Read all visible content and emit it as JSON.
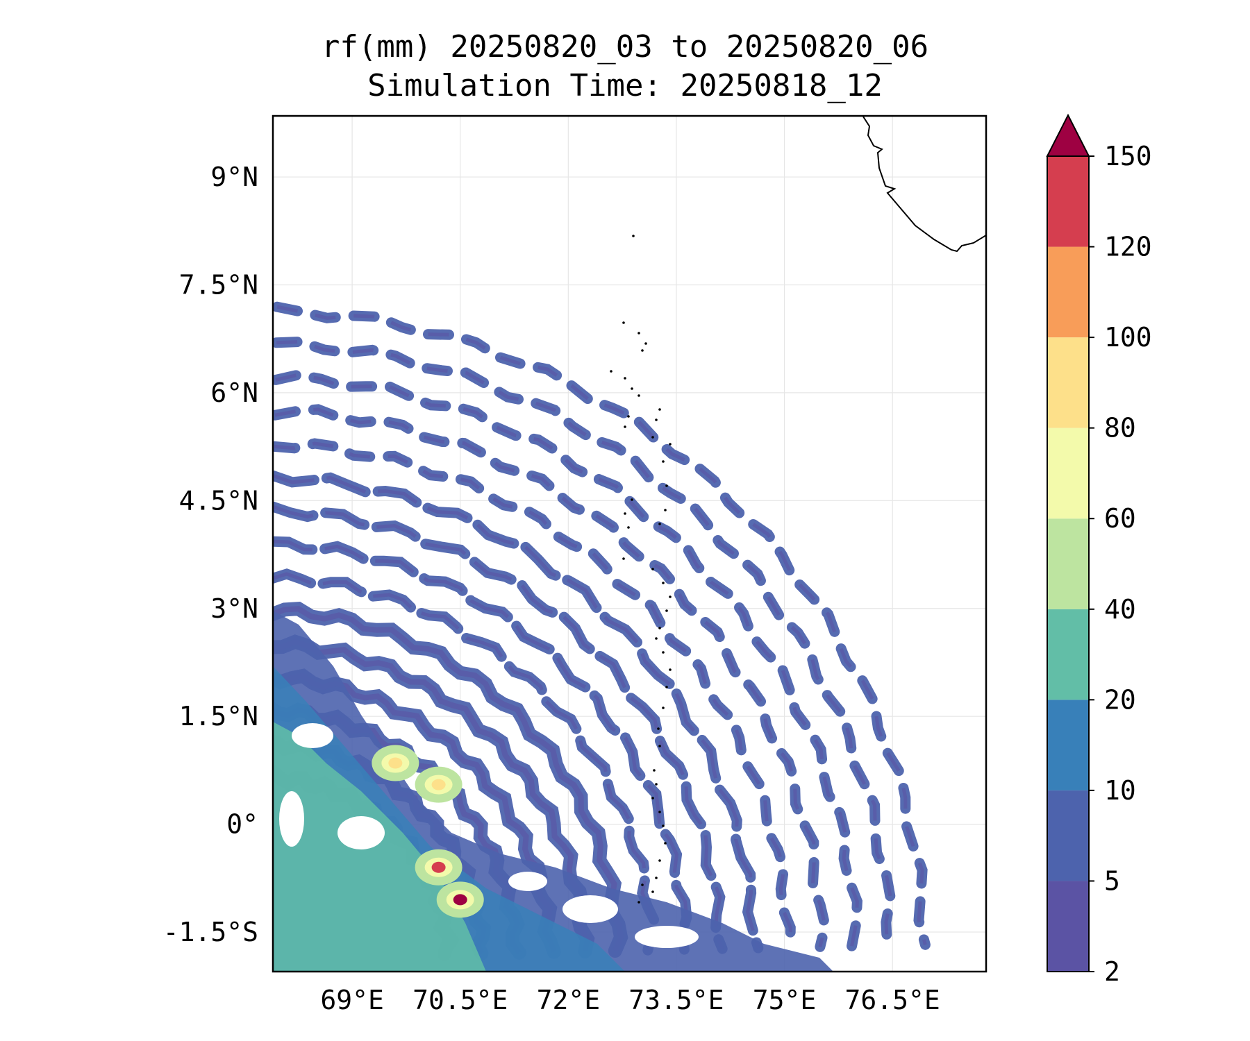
{
  "title": "rf(mm) 20250820_03 to 20250820_06",
  "subtitle": "Simulation Time: 20250818_12",
  "axes": {
    "lon_min": 67.9,
    "lon_max": 77.8,
    "lat_min": -2.05,
    "lat_max": 9.85,
    "x_ticks": [
      {
        "value": 69.0,
        "label": "69°E"
      },
      {
        "value": 70.5,
        "label": "70.5°E"
      },
      {
        "value": 72.0,
        "label": "72°E"
      },
      {
        "value": 73.5,
        "label": "73.5°E"
      },
      {
        "value": 75.0,
        "label": "75°E"
      },
      {
        "value": 76.5,
        "label": "76.5°E"
      }
    ],
    "y_ticks": [
      {
        "value": 9.0,
        "label": "9°N"
      },
      {
        "value": 7.5,
        "label": "7.5°N"
      },
      {
        "value": 6.0,
        "label": "6°N"
      },
      {
        "value": 4.5,
        "label": "4.5°N"
      },
      {
        "value": 3.0,
        "label": "3°N"
      },
      {
        "value": 1.5,
        "label": "1.5°N"
      },
      {
        "value": 0.0,
        "label": "0°"
      },
      {
        "value": -1.5,
        "label": "-1.5°S"
      }
    ],
    "grid": true
  },
  "colorbar": {
    "levels": [
      "2",
      "5",
      "10",
      "20",
      "40",
      "60",
      "80",
      "100",
      "120",
      "150"
    ],
    "colors": [
      "#5b53a4",
      "#4d63ad",
      "#3880b9",
      "#62bea7",
      "#bde4a0",
      "#f3faab",
      "#fde08a",
      "#f89d59",
      "#d53e4f"
    ],
    "extend_color": "#9e0142",
    "extend": "max"
  },
  "chart_data": {
    "type": "heatmap",
    "title": "rf(mm) 20250820_03 to 20250820_06",
    "subtitle": "Simulation Time: 20250818_12",
    "x_range": [
      67.9,
      77.8
    ],
    "y_range": [
      -2.05,
      9.85
    ],
    "levels": [
      2,
      5,
      10,
      20,
      40,
      60,
      80,
      100,
      120,
      150
    ],
    "rain_bands": [
      {
        "lon": 68.0,
        "lat": 4.4,
        "arc": 0.0
      },
      {
        "lon": 69.0,
        "lat": 4.4
      },
      {
        "lon": 70.5,
        "lat": 4.5
      },
      {
        "lon": 71.5,
        "lat": 4.1
      }
    ],
    "max_rain_cells": [
      {
        "lon": 70.5,
        "lat": -1.05,
        "level": 150
      },
      {
        "lon": 70.2,
        "lat": -0.6,
        "level": 120
      },
      {
        "lon": 69.6,
        "lat": 0.85,
        "level": 80
      },
      {
        "lon": 70.2,
        "lat": 0.55,
        "level": 80
      }
    ]
  }
}
